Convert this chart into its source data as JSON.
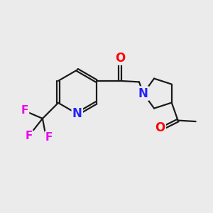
{
  "bg_color": "#ebebeb",
  "bond_color": "#1a1a1a",
  "bond_width": 1.6,
  "atom_colors": {
    "O": "#ff0000",
    "N": "#2222ff",
    "F": "#ee00ee",
    "C": "#1a1a1a"
  },
  "font_size_atom": 11,
  "font_size_F": 10
}
